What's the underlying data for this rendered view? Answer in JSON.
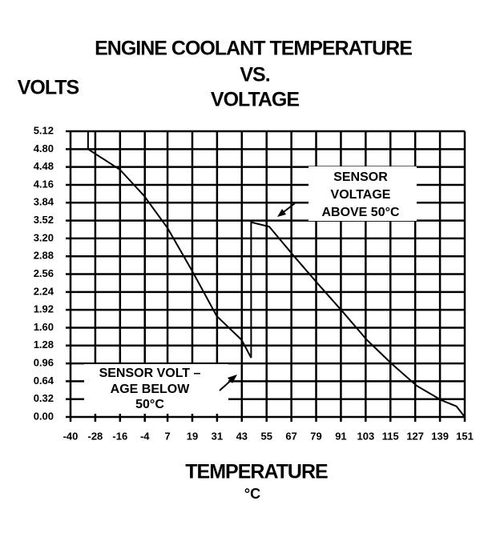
{
  "chart_data": {
    "type": "line",
    "title": [
      "ENGINE COOLANT TEMPERATURE",
      "VS.",
      "VOLTAGE"
    ],
    "y_label": "VOLTS",
    "x_label": "TEMPERATURE",
    "x_unit": "°C",
    "x": [
      -31.5,
      -31.5,
      -16,
      -4.3,
      7.1,
      19.2,
      30.8,
      42.9,
      47.5,
      47.5,
      56.3,
      68.3,
      80,
      92,
      103.6,
      115.7,
      127.7,
      139.7,
      147,
      151
    ],
    "series": [
      {
        "color": "#000000",
        "values": [
          5.12,
          4.8,
          4.43,
          3.96,
          3.38,
          2.6,
          1.81,
          1.38,
          1.06,
          3.49,
          3.41,
          2.88,
          2.38,
          1.88,
          1.38,
          0.95,
          0.56,
          0.3,
          0.19,
          0
        ]
      }
    ],
    "xlim": [
      -40,
      151
    ],
    "xticks": [
      -40,
      -28,
      -16,
      -4,
      7,
      19,
      31,
      43,
      55,
      67,
      79,
      91,
      103,
      115,
      127,
      139,
      151
    ],
    "ylim": [
      0,
      5.12
    ],
    "yticks": [
      {
        "value": 0,
        "label": "0.00"
      },
      0.32,
      0.64,
      0.96,
      1.28,
      {
        "value": 1.6,
        "label": "1.60"
      },
      1.92,
      2.24,
      2.56,
      2.88,
      {
        "value": 3.2,
        "label": "3.20"
      },
      3.52,
      3.84,
      4.16,
      4.48,
      {
        "value": 4.8,
        "label": "4.80"
      },
      5.12
    ],
    "grid": true,
    "annotations": [
      {
        "lines": [
          "SENSOR",
          "VOLTAGE",
          "ABOVE 50°C"
        ]
      },
      {
        "lines": [
          "SENSOR VOLT –",
          "AGE BELOW",
          "50°C"
        ]
      }
    ]
  }
}
